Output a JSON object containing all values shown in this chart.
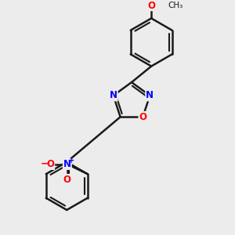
{
  "bg_color": "#ececec",
  "bond_color": "#1a1a1a",
  "N_color": "#0000ff",
  "O_color": "#ff0000",
  "bond_width": 1.8,
  "figsize": [
    3.0,
    3.0
  ],
  "dpi": 100,
  "xlim": [
    -2.5,
    4.5
  ],
  "ylim": [
    -4.5,
    3.5
  ]
}
